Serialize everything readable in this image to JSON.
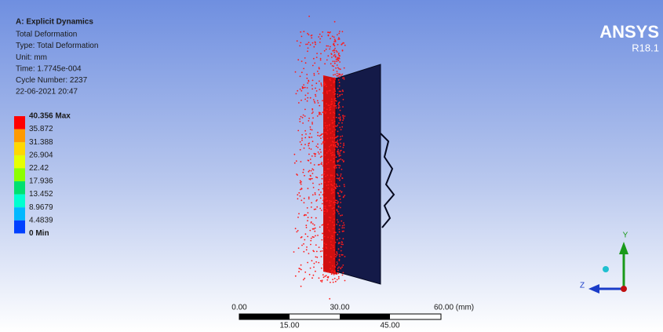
{
  "header": {
    "title": "A: Explicit Dynamics",
    "lines": [
      "Total Deformation",
      "Type: Total Deformation",
      "Unit: mm",
      "Time: 1.7745e-004",
      "Cycle Number: 2237",
      "22-06-2021 20:47"
    ]
  },
  "legend": {
    "labels": [
      "40.356 Max",
      "35.872",
      "31.388",
      "26.904",
      "22.42",
      "17.936",
      "13.452",
      "8.9679",
      "4.4839",
      "0 Min"
    ],
    "colors": [
      "#ff0000",
      "#ff9a00",
      "#ffd800",
      "#e6ff00",
      "#8cff00",
      "#00e070",
      "#00ffd0",
      "#00b8ff",
      "#0040ff"
    ]
  },
  "logo": {
    "brand": "ANSYS",
    "version": "R18.1"
  },
  "scale_bar": {
    "top_labels": [
      "0.00",
      "30.00",
      "60.00 (mm)"
    ],
    "bottom_labels": [
      "15.00",
      "45.00"
    ]
  },
  "triad": {
    "y_label": "Y",
    "z_label": "Z"
  }
}
